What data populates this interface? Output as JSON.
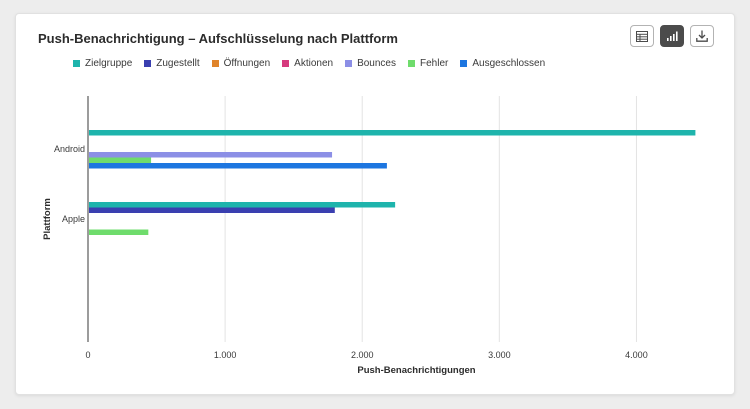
{
  "card": {
    "title": "Push-Benachrichtigung – Aufschlüsselung nach Plattform"
  },
  "toolbar": {
    "buttons": [
      {
        "icon": "table-icon",
        "selected": false
      },
      {
        "icon": "bar-chart-icon",
        "selected": true
      },
      {
        "icon": "download-icon",
        "selected": false
      }
    ]
  },
  "chart_data": {
    "type": "bar",
    "orientation": "horizontal",
    "categories": [
      "Android",
      "Apple"
    ],
    "series": [
      {
        "name": "Zielgruppe",
        "color": "#1eb4ac",
        "values": [
          4430,
          2240
        ]
      },
      {
        "name": "Zugestellt",
        "color": "#3a3fb0",
        "values": [
          0,
          1800
        ]
      },
      {
        "name": "Öffnungen",
        "color": "#e0842a",
        "values": [
          0,
          0
        ]
      },
      {
        "name": "Aktionen",
        "color": "#d63a7e",
        "values": [
          0,
          0
        ]
      },
      {
        "name": "Bounces",
        "color": "#8c8fe6",
        "values": [
          1780,
          0
        ]
      },
      {
        "name": "Fehler",
        "color": "#6fdc6c",
        "values": [
          460,
          440
        ]
      },
      {
        "name": "Ausgeschlossen",
        "color": "#1d76e0",
        "values": [
          2180,
          0
        ]
      }
    ],
    "xlim": [
      0,
      4500
    ],
    "xticks": [
      0,
      1000,
      2000,
      3000,
      4000
    ],
    "xtick_labels": [
      "0",
      "1.000",
      "2.000",
      "3.000",
      "4.000"
    ],
    "xlabel": "Push-Benachrichtigungen",
    "ylabel": "Plattform",
    "legend_position": "top-left",
    "grid": "vertical"
  }
}
